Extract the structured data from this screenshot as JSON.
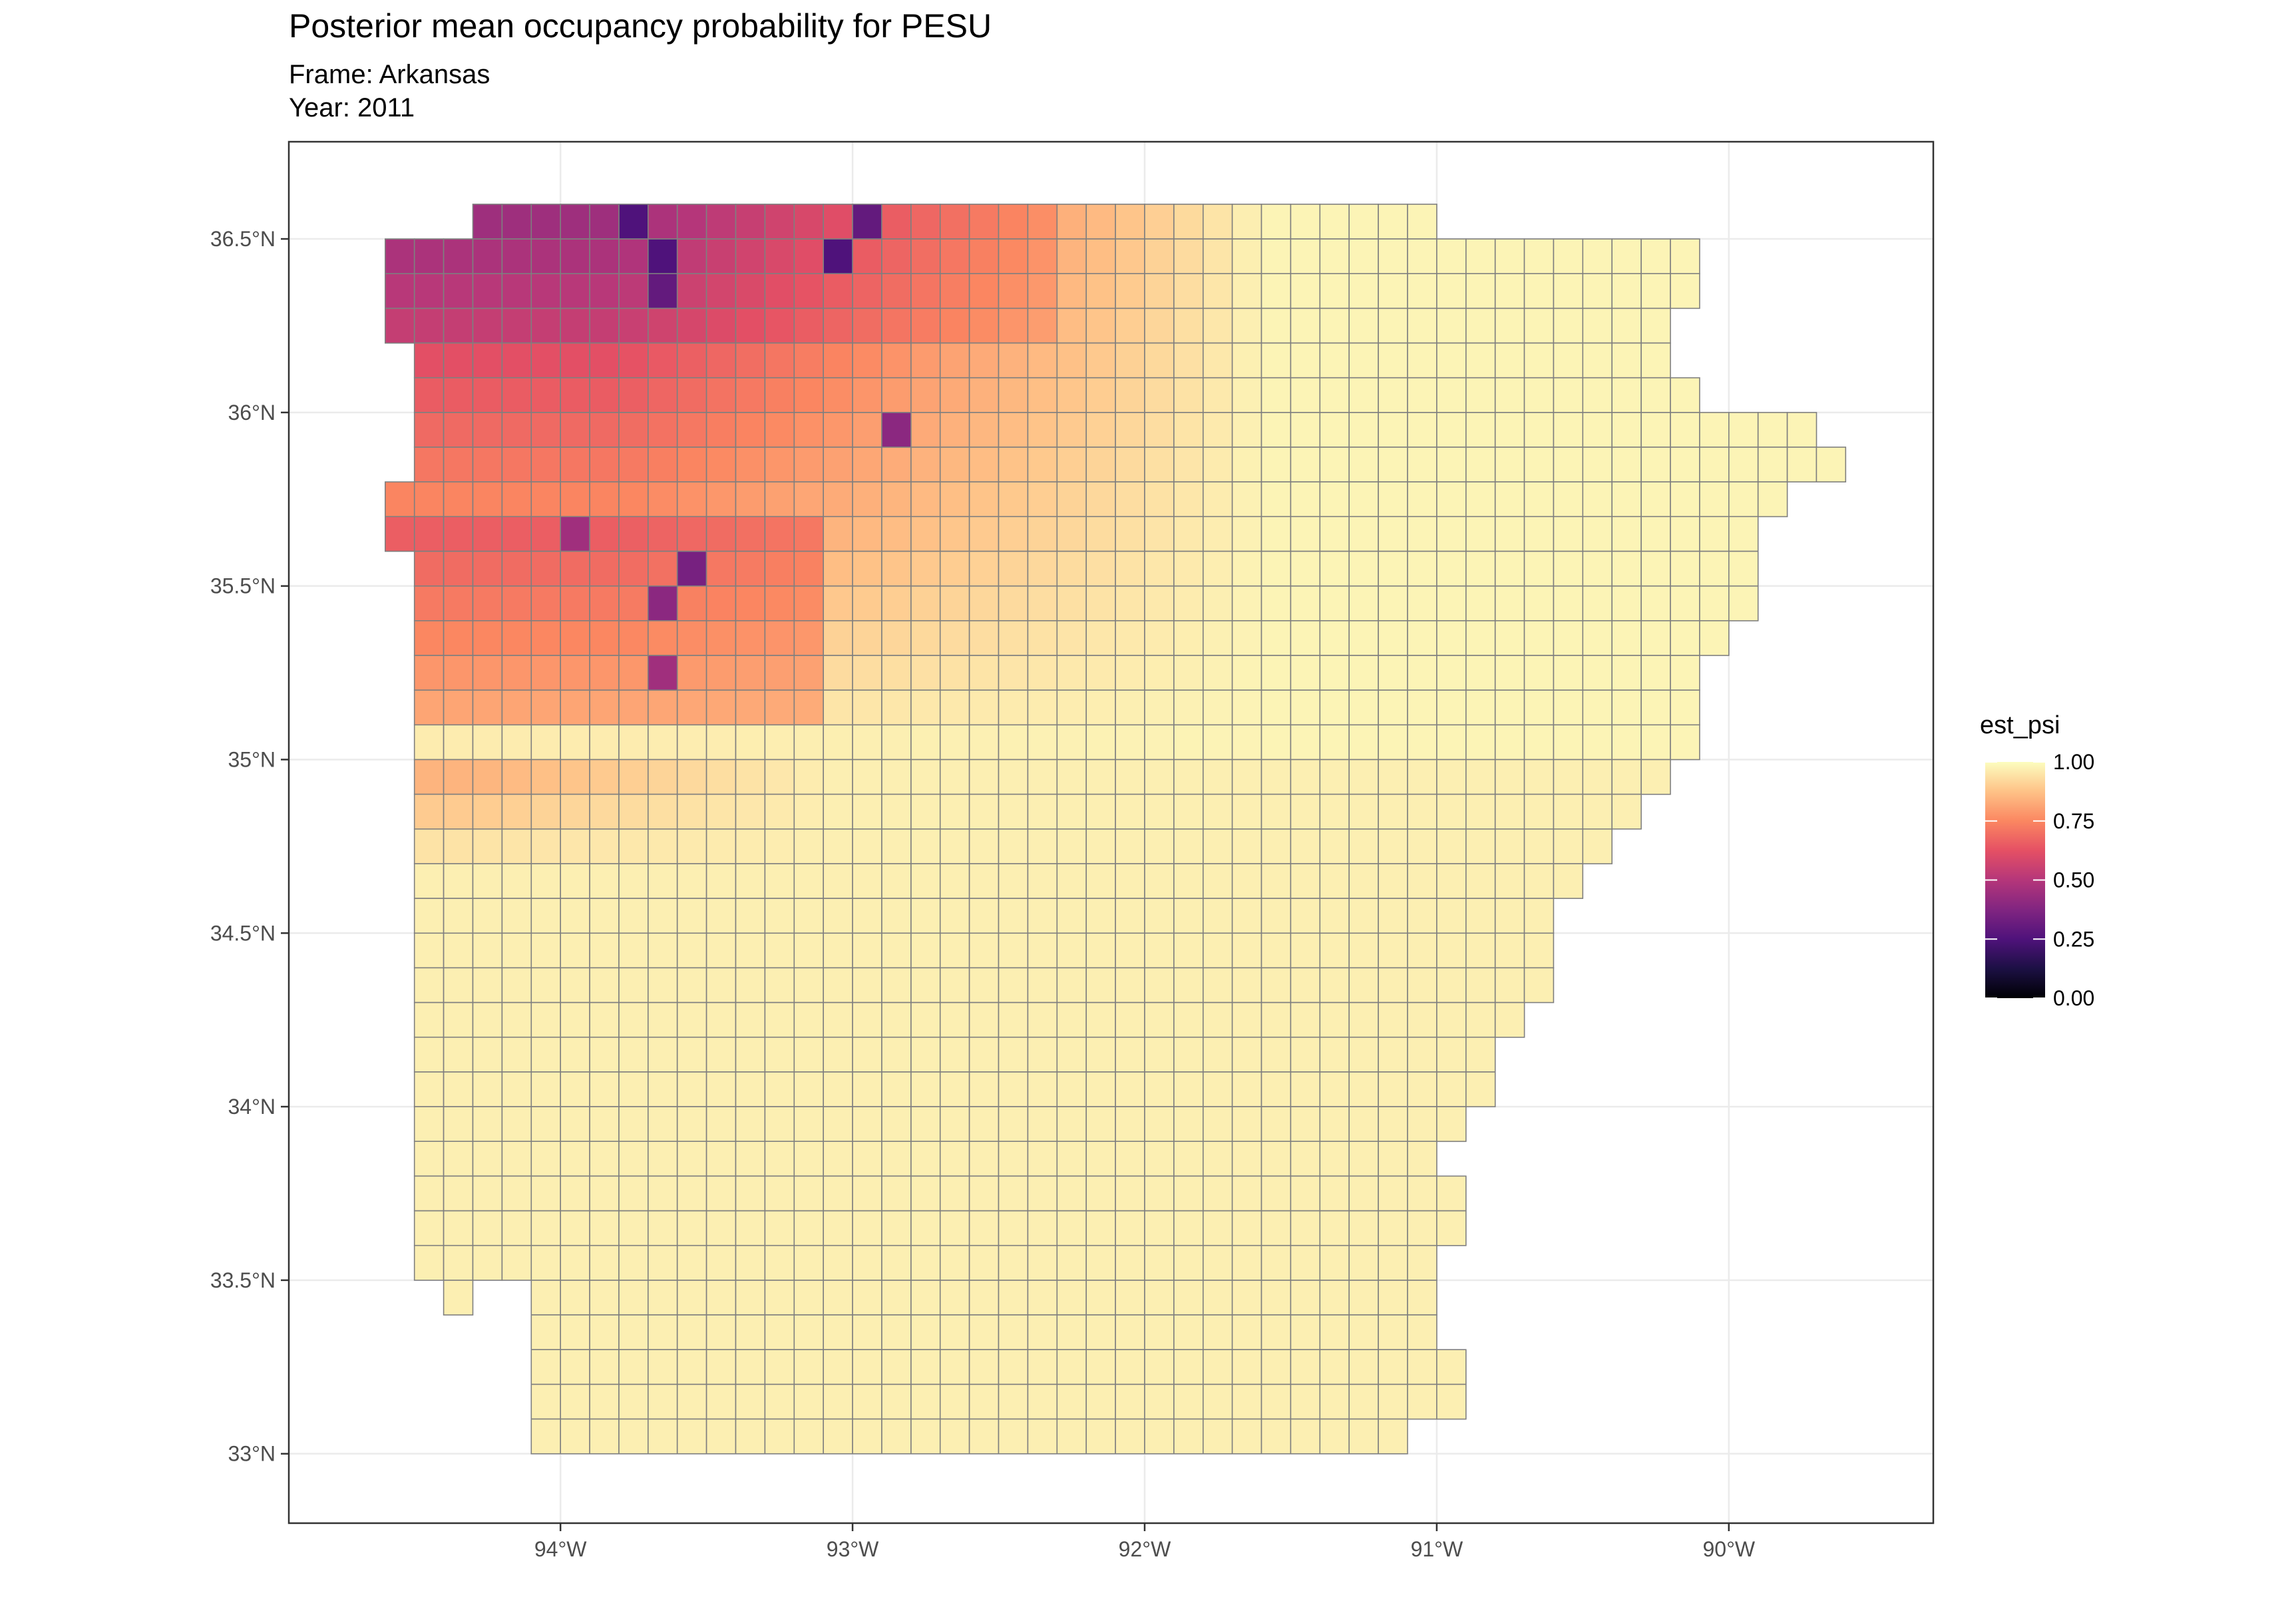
{
  "chart_data": {
    "type": "heatmap",
    "title": "Posterior mean occupancy probability for PESU",
    "subtitle_frame": "Frame: Arkansas",
    "subtitle_year": "Year: 2011",
    "x_ticks": [
      "94°W",
      "93°W",
      "92°W",
      "91°W",
      "90°W"
    ],
    "y_ticks": [
      "36.5°N",
      "36°N",
      "35.5°N",
      "35°N",
      "34.5°N",
      "34°N",
      "33.5°N",
      "33°N"
    ],
    "x_tick_values": [
      -94,
      -93,
      -92,
      -91,
      -90
    ],
    "y_tick_values": [
      36.5,
      36,
      35.5,
      35,
      34.5,
      34,
      33.5,
      33
    ],
    "xlim": [
      -94.93,
      -89.3
    ],
    "ylim": [
      32.8,
      36.78
    ],
    "cell_size_deg": 0.1,
    "grid": true,
    "legend": {
      "title": "est_psi",
      "ticks": [
        "1.00",
        "0.75",
        "0.50",
        "0.25",
        "0.00"
      ],
      "tick_values": [
        1.0,
        0.75,
        0.5,
        0.25,
        0.0
      ],
      "range": [
        0,
        1
      ],
      "colormap": "magma",
      "placement": "right"
    },
    "colors": {
      "cell_border": "#7f7f7f",
      "panel_border": "#333333",
      "grid": "#ebebeb"
    },
    "state_rows": [
      {
        "lat": 36.55,
        "lon_min": -94.6,
        "lon_max": -91.0
      },
      {
        "lat": 36.45,
        "lon_min": -94.6,
        "lon_max": -90.1
      },
      {
        "lat": 36.35,
        "lon_min": -94.6,
        "lon_max": -90.1
      },
      {
        "lat": 36.25,
        "lon_min": -94.6,
        "lon_max": -90.2
      },
      {
        "lat": 36.15,
        "lon_min": -94.5,
        "lon_max": -90.2
      },
      {
        "lat": 36.05,
        "lon_min": -94.5,
        "lon_max": -90.1
      },
      {
        "lat": 35.95,
        "lon_min": -94.5,
        "lon_max": -89.7
      },
      {
        "lat": 35.85,
        "lon_min": -94.5,
        "lon_max": -89.6
      },
      {
        "lat": 35.75,
        "lon_min": -94.5,
        "lon_max": -89.8
      },
      {
        "lat": 35.65,
        "lon_min": -94.5,
        "lon_max": -89.9
      },
      {
        "lat": 35.55,
        "lon_min": -94.5,
        "lon_max": -89.9
      },
      {
        "lat": 35.45,
        "lon_min": -94.5,
        "lon_max": -89.9
      },
      {
        "lat": 35.35,
        "lon_min": -94.5,
        "lon_max": -90.0
      },
      {
        "lat": 35.25,
        "lon_min": -94.5,
        "lon_max": -90.1
      },
      {
        "lat": 35.15,
        "lon_min": -94.5,
        "lon_max": -90.1
      },
      {
        "lat": 35.05,
        "lon_min": -94.5,
        "lon_max": -90.1
      },
      {
        "lat": 34.95,
        "lon_min": -94.5,
        "lon_max": -90.2
      },
      {
        "lat": 34.85,
        "lon_min": -94.5,
        "lon_max": -90.3
      },
      {
        "lat": 34.75,
        "lon_min": -94.5,
        "lon_max": -90.4
      },
      {
        "lat": 34.65,
        "lon_min": -94.5,
        "lon_max": -90.5
      },
      {
        "lat": 34.55,
        "lon_min": -94.5,
        "lon_max": -90.6
      },
      {
        "lat": 34.45,
        "lon_min": -94.5,
        "lon_max": -90.6
      },
      {
        "lat": 34.35,
        "lon_min": -94.5,
        "lon_max": -90.6
      },
      {
        "lat": 34.25,
        "lon_min": -94.5,
        "lon_max": -90.7
      },
      {
        "lat": 34.15,
        "lon_min": -94.5,
        "lon_max": -90.8
      },
      {
        "lat": 34.05,
        "lon_min": -94.5,
        "lon_max": -90.8
      },
      {
        "lat": 33.95,
        "lon_min": -94.5,
        "lon_max": -90.9
      },
      {
        "lat": 33.85,
        "lon_min": -94.5,
        "lon_max": -91.0
      },
      {
        "lat": 33.75,
        "lon_min": -94.5,
        "lon_max": -90.9
      },
      {
        "lat": 33.65,
        "lon_min": -94.5,
        "lon_max": -90.9
      },
      {
        "lat": 33.55,
        "lon_min": -94.5,
        "lon_max": -91.0
      },
      {
        "lat": 33.45,
        "lon_min": -94.1,
        "lon_max": -91.0
      },
      {
        "lat": 33.35,
        "lon_min": -94.1,
        "lon_max": -91.0
      },
      {
        "lat": 33.25,
        "lon_min": -94.1,
        "lon_max": -90.9
      },
      {
        "lat": 33.15,
        "lon_min": -94.1,
        "lon_max": -90.9
      },
      {
        "lat": 33.05,
        "lon_min": -94.1,
        "lon_max": -91.1
      }
    ],
    "extra_cells": [
      {
        "lat": 35.75,
        "lon_min": -94.6,
        "lon_max": -94.5
      },
      {
        "lat": 35.65,
        "lon_min": -94.6,
        "lon_max": -94.5
      },
      {
        "lat": 36.55,
        "lon_min": -94.4,
        "lon_max": -94.3
      },
      {
        "lat": 33.45,
        "lon_min": -94.4,
        "lon_max": -94.3
      }
    ],
    "removed_cells": [
      {
        "lat": 36.55,
        "lon_min": -94.6,
        "lon_max": -94.3
      }
    ],
    "psi_regions_note_excluded": true,
    "low_psi_patches": [
      {
        "lat": 36.55,
        "lon": -93.75,
        "psi": 0.25
      },
      {
        "lat": 36.55,
        "lon": -92.95,
        "psi": 0.3
      },
      {
        "lat": 36.45,
        "lon": -93.65,
        "psi": 0.25
      },
      {
        "lat": 36.45,
        "lon": -93.05,
        "psi": 0.25
      },
      {
        "lat": 36.35,
        "lon": -93.65,
        "psi": 0.3
      },
      {
        "lat": 35.95,
        "lon": -92.85,
        "psi": 0.4
      },
      {
        "lat": 35.55,
        "lon": -93.55,
        "psi": 0.35
      },
      {
        "lat": 35.45,
        "lon": -93.65,
        "psi": 0.4
      },
      {
        "lat": 35.65,
        "lon": -93.95,
        "psi": 0.45
      },
      {
        "lat": 35.25,
        "lon": -93.65,
        "psi": 0.45
      }
    ]
  }
}
